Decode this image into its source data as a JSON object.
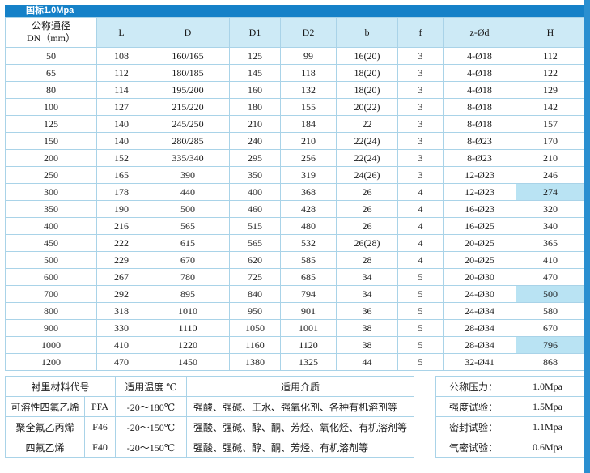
{
  "title_bar": {
    "text": "国标1.0Mpa"
  },
  "colors": {
    "title_bar_bg": "#1581c8",
    "header_cell_bg": "#cdeaf6",
    "highlight_cell_bg": "#b9e3f3",
    "border": "#a9d3e8",
    "right_strip": "#2a8fd0"
  },
  "spec_table": {
    "dn_header": {
      "line1": "公称通径",
      "line2": "DN（mm）"
    },
    "col_headers": [
      "L",
      "D",
      "D1",
      "D2",
      "b",
      "f",
      "z-Ød",
      "H"
    ],
    "rows": [
      [
        "50",
        "108",
        "160/165",
        "125",
        "99",
        "16(20)",
        "3",
        "4-Ø18",
        "112"
      ],
      [
        "65",
        "112",
        "180/185",
        "145",
        "118",
        "18(20)",
        "3",
        "4-Ø18",
        "122"
      ],
      [
        "80",
        "114",
        "195/200",
        "160",
        "132",
        "18(20)",
        "3",
        "4-Ø18",
        "129"
      ],
      [
        "100",
        "127",
        "215/220",
        "180",
        "155",
        "20(22)",
        "3",
        "8-Ø18",
        "142"
      ],
      [
        "125",
        "140",
        "245/250",
        "210",
        "184",
        "22",
        "3",
        "8-Ø18",
        "157"
      ],
      [
        "150",
        "140",
        "280/285",
        "240",
        "210",
        "22(24)",
        "3",
        "8-Ø23",
        "170"
      ],
      [
        "200",
        "152",
        "335/340",
        "295",
        "256",
        "22(24)",
        "3",
        "8-Ø23",
        "210"
      ],
      [
        "250",
        "165",
        "390",
        "350",
        "319",
        "24(26)",
        "3",
        "12-Ø23",
        "246"
      ],
      [
        "300",
        "178",
        "440",
        "400",
        "368",
        "26",
        "4",
        "12-Ø23",
        "274"
      ],
      [
        "350",
        "190",
        "500",
        "460",
        "428",
        "26",
        "4",
        "16-Ø23",
        "320"
      ],
      [
        "400",
        "216",
        "565",
        "515",
        "480",
        "26",
        "4",
        "16-Ø25",
        "340"
      ],
      [
        "450",
        "222",
        "615",
        "565",
        "532",
        "26(28)",
        "4",
        "20-Ø25",
        "365"
      ],
      [
        "500",
        "229",
        "670",
        "620",
        "585",
        "28",
        "4",
        "20-Ø25",
        "410"
      ],
      [
        "600",
        "267",
        "780",
        "725",
        "685",
        "34",
        "5",
        "20-Ø30",
        "470"
      ],
      [
        "700",
        "292",
        "895",
        "840",
        "794",
        "34",
        "5",
        "24-Ø30",
        "500"
      ],
      [
        "800",
        "318",
        "1010",
        "950",
        "901",
        "36",
        "5",
        "24-Ø34",
        "580"
      ],
      [
        "900",
        "330",
        "1110",
        "1050",
        "1001",
        "38",
        "5",
        "28-Ø34",
        "670"
      ],
      [
        "1000",
        "410",
        "1220",
        "1160",
        "1120",
        "38",
        "5",
        "28-Ø34",
        "796"
      ],
      [
        "1200",
        "470",
        "1450",
        "1380",
        "1325",
        "44",
        "5",
        "32-Ø41",
        "868"
      ]
    ],
    "highlighted_cells": [
      [
        8,
        8
      ],
      [
        14,
        8
      ],
      [
        17,
        8
      ]
    ]
  },
  "material_table": {
    "headers": {
      "code": "衬里材料代号",
      "temp": "适用温度 ℃",
      "media": "适用介质"
    },
    "rows": [
      {
        "name": "可溶性四氟乙烯",
        "code": "PFA",
        "temp": "-20～180℃",
        "media": "强酸、强碱、王水、强氧化剂、各种有机溶剂等"
      },
      {
        "name": "聚全氟乙丙烯",
        "code": "F46",
        "temp": "-20～150℃",
        "media": "强酸、强碱、醇、酮、芳烃、氧化烃、有机溶剂等"
      },
      {
        "name": "四氟乙烯",
        "code": "F40",
        "temp": "-20～150℃",
        "media": "强酸、强碱、醇、酮、芳烃、有机溶剂等"
      }
    ]
  },
  "pressure_table": {
    "rows": [
      {
        "label": "公称压力：",
        "value": "1.0Mpa"
      },
      {
        "label": "强度试验：",
        "value": "1.5Mpa"
      },
      {
        "label": "密封试验：",
        "value": "1.1Mpa"
      },
      {
        "label": "气密试验：",
        "value": "0.6Mpa"
      }
    ]
  }
}
